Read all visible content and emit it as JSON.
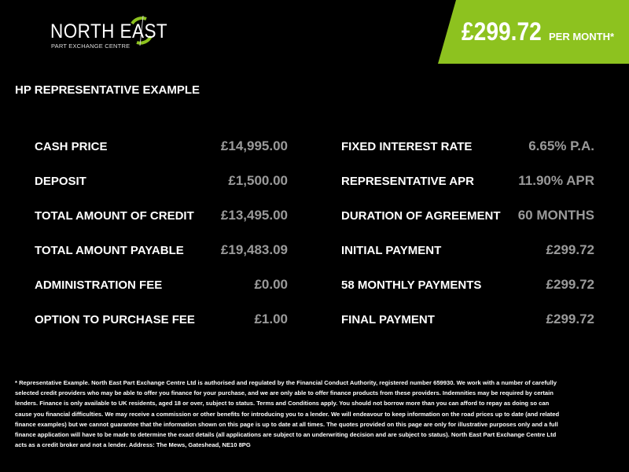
{
  "brand": {
    "name": "NORTH EAST",
    "subtitle": "PART EXCHANGE CENTRE",
    "accent": "#8dc21f"
  },
  "banner": {
    "price": "£299.72",
    "suffix": "PER MONTH*"
  },
  "heading": "HP REPRESENTATIVE EXAMPLE",
  "left": [
    {
      "label": "CASH PRICE",
      "value": "£14,995.00"
    },
    {
      "label": "DEPOSIT",
      "value": "£1,500.00"
    },
    {
      "label": "TOTAL AMOUNT OF CREDIT",
      "value": "£13,495.00"
    },
    {
      "label": "TOTAL AMOUNT PAYABLE",
      "value": "£19,483.09"
    },
    {
      "label": "ADMINISTRATION FEE",
      "value": "£0.00"
    },
    {
      "label": "OPTION TO PURCHASE FEE",
      "value": "£1.00"
    }
  ],
  "right": [
    {
      "label": "FIXED INTEREST RATE",
      "value": "6.65% P.A."
    },
    {
      "label": "REPRESENTATIVE APR",
      "value": "11.90% APR"
    },
    {
      "label": "DURATION OF AGREEMENT",
      "value": "60 MONTHS"
    },
    {
      "label": "INITIAL PAYMENT",
      "value": "£299.72"
    },
    {
      "label": "58 MONTHLY PAYMENTS",
      "value": "£299.72"
    },
    {
      "label": "FINAL PAYMENT",
      "value": "£299.72"
    }
  ],
  "footer": "* Representative Example. North East Part Exchange Centre Ltd is authorised and regulated by the Financial Conduct Authority, registered number 659930. We work with a number of carefully selected credit providers who may be able to offer you finance for your purchase, and we are only able to offer finance products from these providers. Indemnities may be required by certain lenders. Finance is only available to UK residents, aged 18 or over, subject to status. Terms and Conditions apply. You should not borrow more than you can afford to repay as doing so can cause you financial difficulties. We may receive a commission or other benefits for introducing you to a lender. We will endeavour to keep information on the road prices up to date (and related finance examples) but we cannot guarantee that the information shown on this page is up to date at all times. The quotes provided on this page are only for illustrative purposes only and a full finance application will have to be made to determine the exact details (all applications are subject to an underwriting decision and are subject to status). North East Part Exchange Centre Ltd acts as a credit broker and not a lender. Address: The Mews, Gateshead, NE10 8PG"
}
